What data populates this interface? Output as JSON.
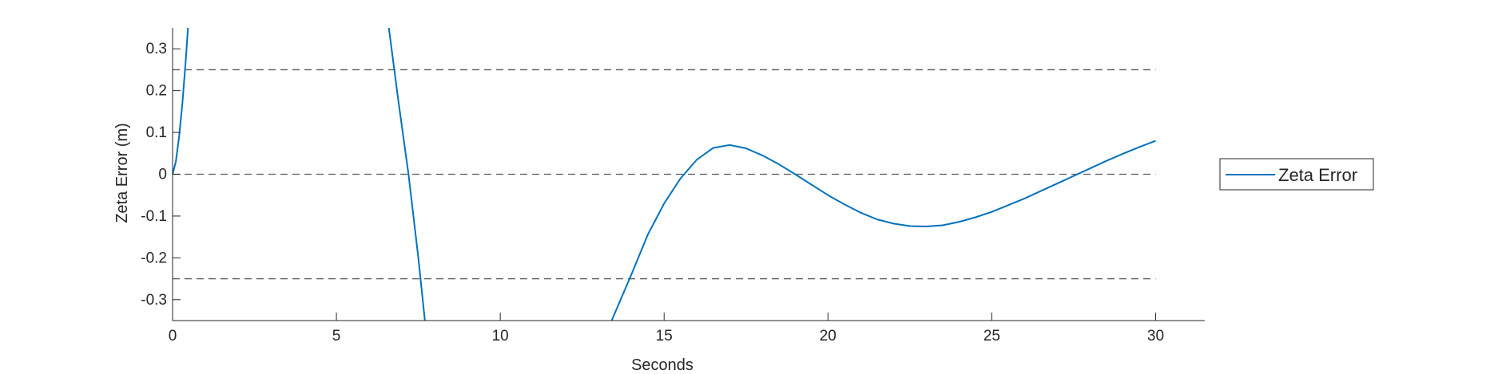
{
  "chart_data": {
    "type": "line",
    "title": "",
    "xlabel": "Seconds",
    "ylabel": "Zeta Error (m)",
    "xlim": [
      0,
      31.5
    ],
    "ylim": [
      -0.35,
      0.35
    ],
    "x_ticks": [
      "0",
      "5",
      "10",
      "15",
      "20",
      "25",
      "30"
    ],
    "x_tick_values": [
      0,
      5,
      10,
      15,
      20,
      25,
      30
    ],
    "y_ticks": [
      "0.3",
      "0.2",
      "0.1",
      "0",
      "-0.1",
      "-0.2",
      "-0.3"
    ],
    "y_tick_values": [
      0.3,
      0.2,
      0.1,
      0,
      -0.1,
      -0.2,
      -0.3
    ],
    "grid": false,
    "legend_position": "right-outside",
    "reference_lines": [
      {
        "y": 0.25,
        "style": "dashed",
        "color": "#595959",
        "x_range": [
          0,
          30
        ]
      },
      {
        "y": 0,
        "style": "dashed",
        "color": "#595959",
        "x_range": [
          0,
          30
        ]
      },
      {
        "y": -0.25,
        "style": "dashed",
        "color": "#595959",
        "x_range": [
          0,
          30
        ]
      }
    ],
    "series": [
      {
        "name": "Zeta Error",
        "color": "#0072BD",
        "segments": [
          {
            "x": [
              0,
              0.1,
              0.2,
              0.3,
              0.4,
              0.47
            ],
            "y": [
              0,
              0.03,
              0.09,
              0.17,
              0.27,
              0.35
            ]
          },
          {
            "x": [
              6.6,
              6.9,
              7.2,
              7.5,
              7.7
            ],
            "y": [
              0.35,
              0.17,
              0.0,
              -0.2,
              -0.35
            ]
          },
          {
            "x": [
              13.4,
              14.0,
              14.5,
              15.0,
              15.5,
              16.0,
              16.5,
              17.0,
              17.5,
              18.0,
              18.5,
              19.0,
              19.5,
              20.0,
              20.5,
              21.0,
              21.5,
              22.0,
              22.5,
              23.0,
              23.5,
              24.0,
              24.5,
              25.0,
              25.5,
              26.0,
              26.5,
              27.0,
              27.5,
              28.0,
              28.5,
              29.0,
              29.5,
              30.0
            ],
            "y": [
              -0.35,
              -0.24,
              -0.145,
              -0.07,
              -0.01,
              0.035,
              0.063,
              0.07,
              0.062,
              0.045,
              0.024,
              0.0,
              -0.025,
              -0.05,
              -0.072,
              -0.092,
              -0.108,
              -0.118,
              -0.124,
              -0.125,
              -0.122,
              -0.114,
              -0.103,
              -0.09,
              -0.074,
              -0.058,
              -0.04,
              -0.022,
              -0.004,
              0.014,
              0.032,
              0.049,
              0.065,
              0.08
            ]
          }
        ]
      }
    ]
  }
}
